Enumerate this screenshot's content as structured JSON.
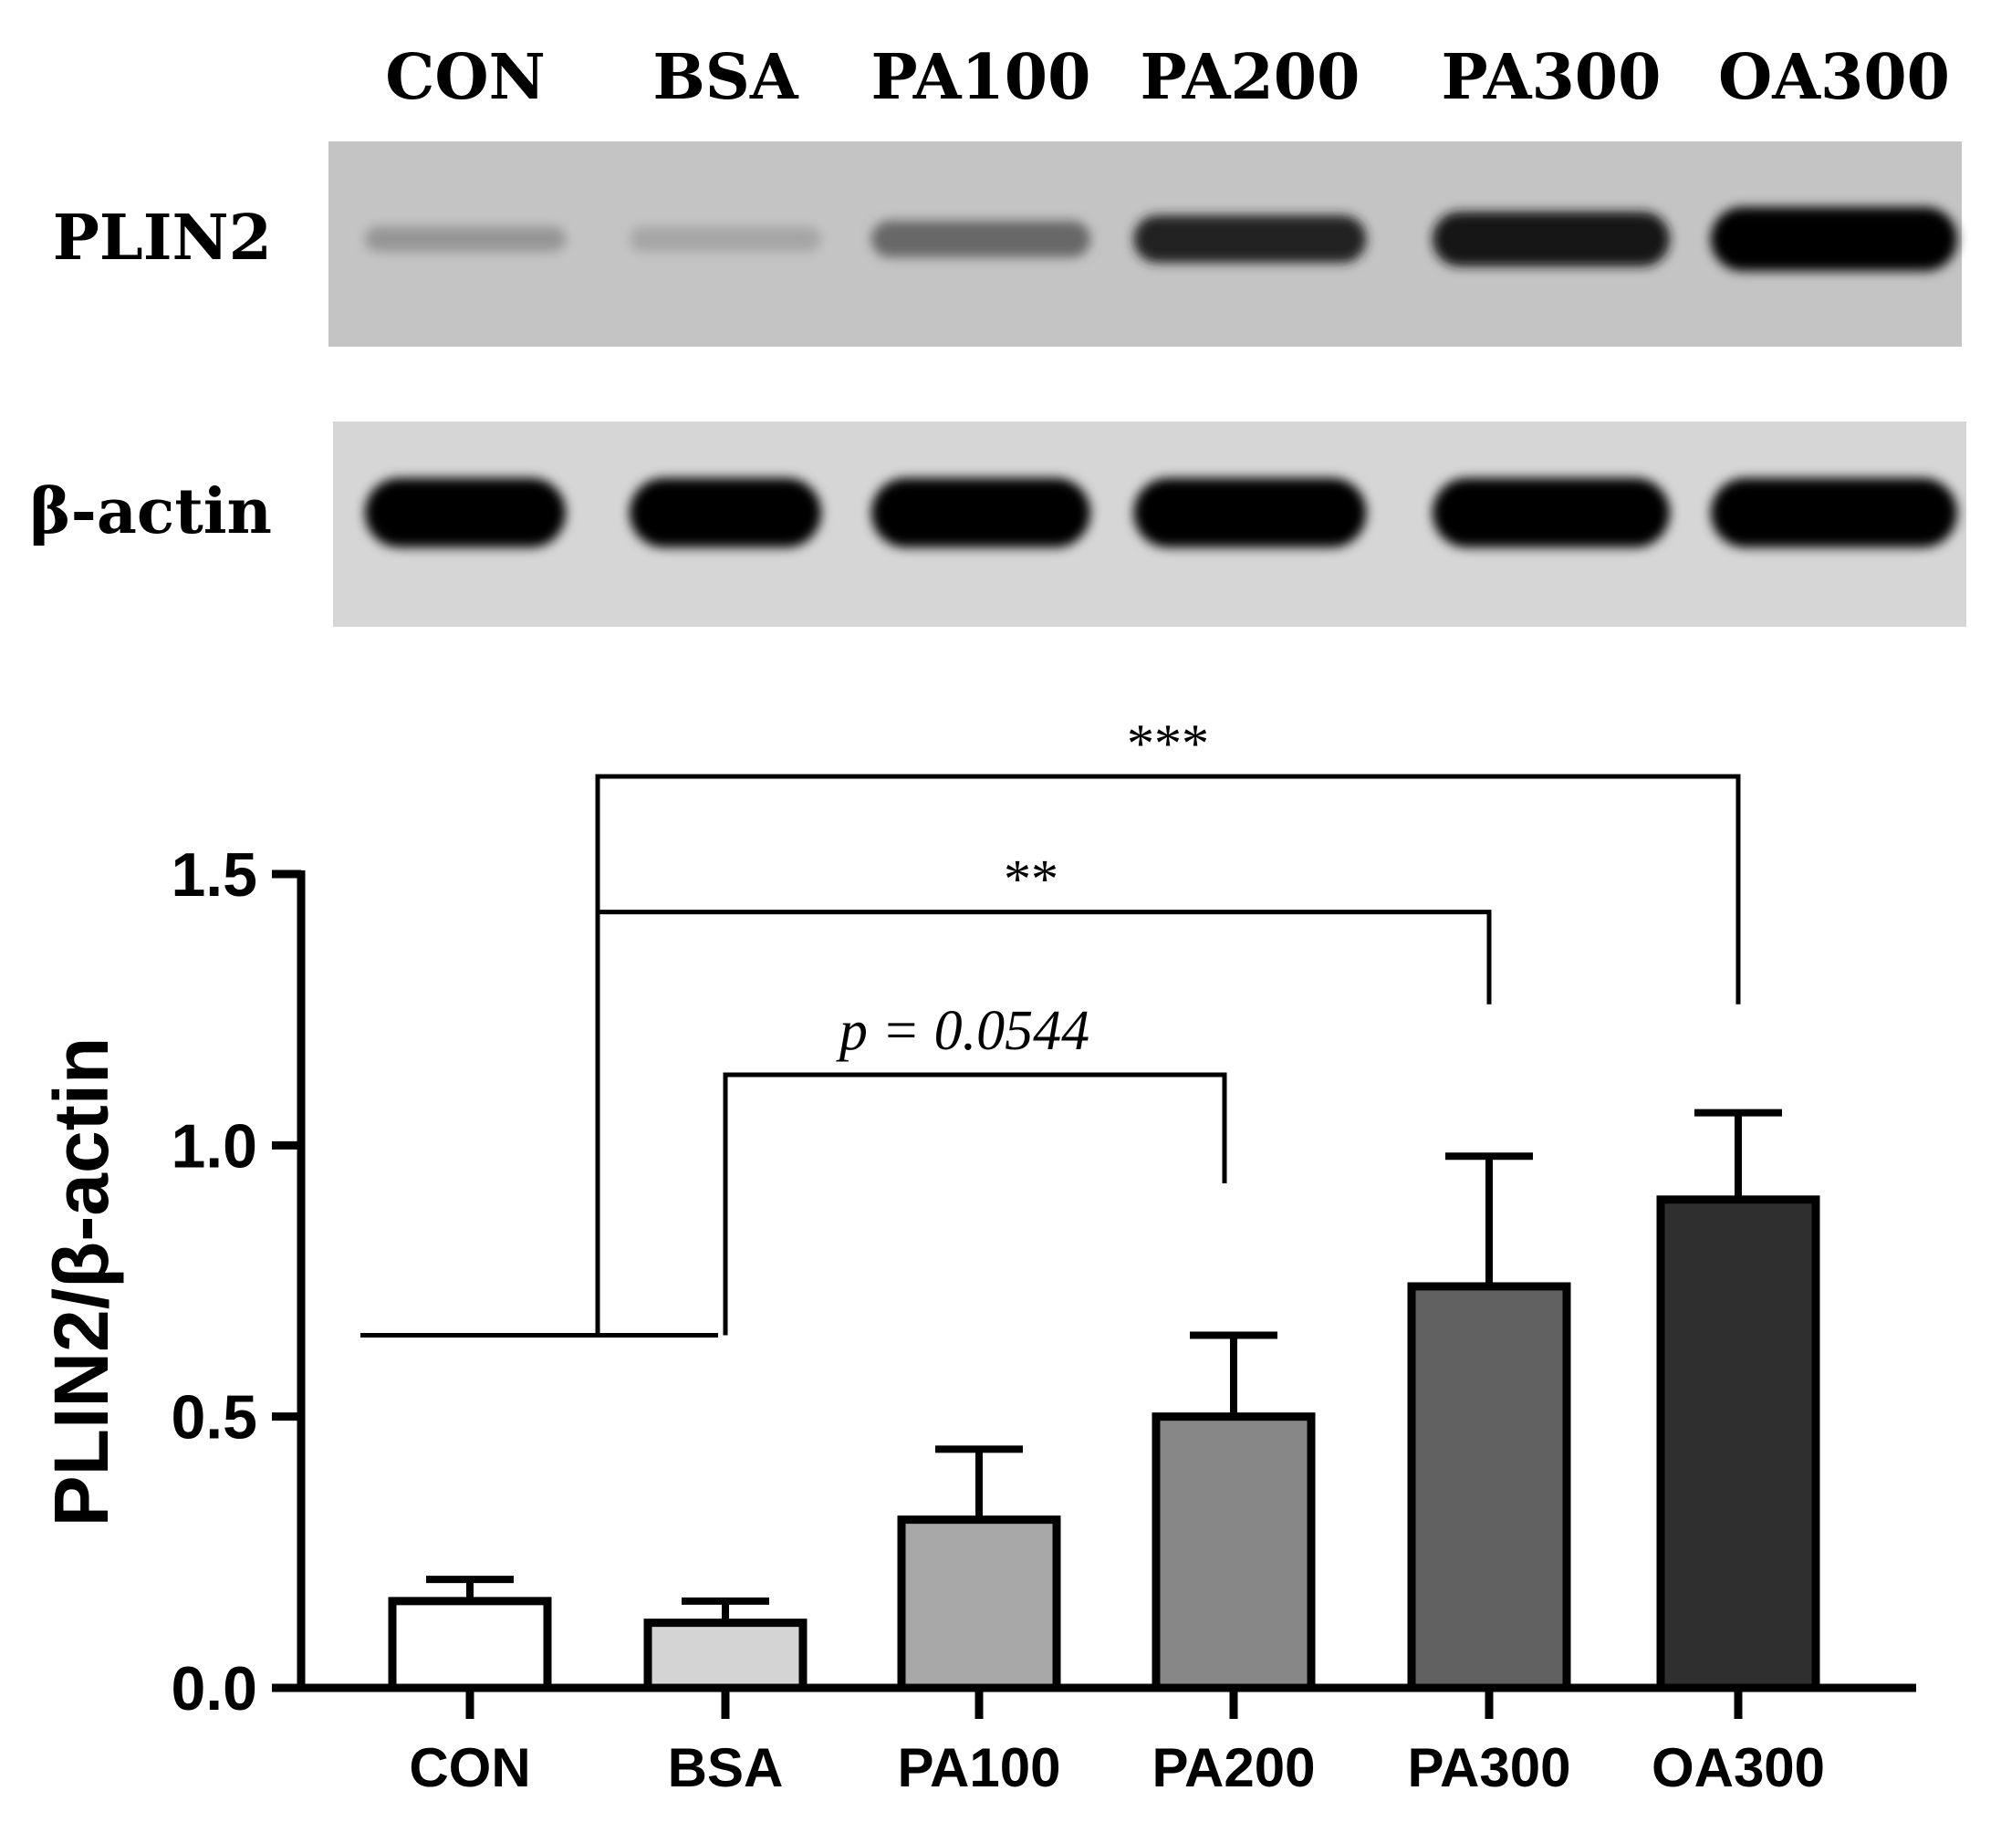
{
  "blot": {
    "lanes": [
      "CON",
      "BSA",
      "PA100",
      "PA200",
      "PA300",
      "OA300"
    ],
    "rows": [
      {
        "label": "PLIN2",
        "band_intensity": [
          0.35,
          0.28,
          0.55,
          0.85,
          0.92,
          0.98
        ],
        "background": "#c4c4c4"
      },
      {
        "label": "β-actin",
        "band_intensity": [
          1,
          1,
          1,
          1,
          1,
          1
        ],
        "background": "#d6d6d6"
      }
    ]
  },
  "chart_data": {
    "type": "bar",
    "categories": [
      "CON",
      "BSA",
      "PA100",
      "PA200",
      "PA300",
      "OA300"
    ],
    "values": [
      0.16,
      0.12,
      0.31,
      0.5,
      0.74,
      0.9
    ],
    "errors": [
      0.04,
      0.04,
      0.13,
      0.15,
      0.24,
      0.16
    ],
    "bar_colors": [
      "#ffffff",
      "#d4d4d4",
      "#a8a8a8",
      "#878787",
      "#616161",
      "#2f2f2f"
    ],
    "ylabel": "PLIN2/β-actin",
    "yticks": [
      "0.0",
      "0.5",
      "1.0",
      "1.5"
    ],
    "ylim": [
      0,
      1.5
    ],
    "significance": [
      {
        "label": "***",
        "italic": false
      },
      {
        "label": "**",
        "italic": false
      },
      {
        "label": "p = 0.0544",
        "italic": true
      }
    ]
  }
}
